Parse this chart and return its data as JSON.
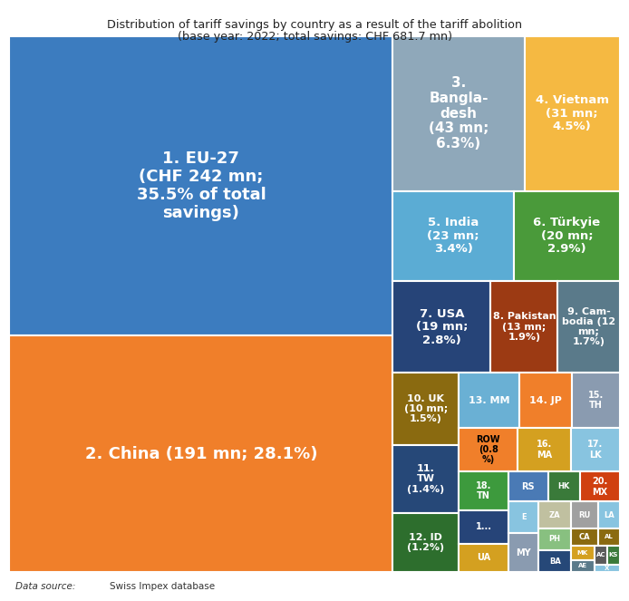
{
  "title_line1": "Distribution of tariff savings by country as a result of the tariff abolition",
  "title_line2": "(base year: 2022; total savings: CHF 681.7 mn)",
  "countries": [
    {
      "label": "1. EU-27\n(CHF 242 mn;\n35.5% of total\nsavings)",
      "value": 242,
      "color": "#3c7cbf",
      "text_dark": false
    },
    {
      "label": "2. China (191 mn; 28.1%)",
      "value": 191,
      "color": "#f07f2a",
      "text_dark": false
    },
    {
      "label": "3.\nBangla-\ndesh\n(43 mn;\n6.3%)",
      "value": 43,
      "color": "#8fa8ba",
      "text_dark": false
    },
    {
      "label": "4. Vietnam\n(31 mn;\n4.5%)",
      "value": 31,
      "color": "#f5b942",
      "text_dark": false
    },
    {
      "label": "5. India\n(23 mn;\n3.4%)",
      "value": 23,
      "color": "#5bacd4",
      "text_dark": false
    },
    {
      "label": "6. Türkyie\n(20 mn;\n2.9%)",
      "value": 20,
      "color": "#4a9a3a",
      "text_dark": false
    },
    {
      "label": "7. USA\n(19 mn;\n2.8%)",
      "value": 19,
      "color": "#264478",
      "text_dark": false
    },
    {
      "label": "8. Pakistan\n(13 mn;\n1.9%)",
      "value": 13,
      "color": "#9c3a13",
      "text_dark": false
    },
    {
      "label": "9. Cam-\nbodia (12\nmn;\n1.7%)",
      "value": 12,
      "color": "#5a7a8a",
      "text_dark": false
    },
    {
      "label": "10. UK\n(10 mn;\n1.5%)",
      "value": 10,
      "color": "#8a6a10",
      "text_dark": false
    },
    {
      "label": "11.\nTW\n(1.4%)",
      "value": 9.5,
      "color": "#264878",
      "text_dark": false
    },
    {
      "label": "12. ID\n(1.2%)",
      "value": 8.2,
      "color": "#2d6e2d",
      "text_dark": false
    },
    {
      "label": "13. MM",
      "value": 7.0,
      "color": "#6ab0d4",
      "text_dark": false
    },
    {
      "label": "14. JP",
      "value": 6.0,
      "color": "#f07f2a",
      "text_dark": false
    },
    {
      "label": "15.\nTH",
      "value": 5.5,
      "color": "#8a9bb0",
      "text_dark": false
    },
    {
      "label": "ROW\n(0.8\n%)",
      "value": 5.5,
      "color": "#f07f2a",
      "text_dark": true
    },
    {
      "label": "16.\nMA",
      "value": 5.0,
      "color": "#d4a020",
      "text_dark": false
    },
    {
      "label": "17.\nLK",
      "value": 4.5,
      "color": "#88c4e0",
      "text_dark": false
    },
    {
      "label": "18.\nTN",
      "value": 4.0,
      "color": "#3d9a3d",
      "text_dark": false
    },
    {
      "label": "1...",
      "value": 3.5,
      "color": "#264478",
      "text_dark": false
    },
    {
      "label": "UA",
      "value": 3.0,
      "color": "#d4a020",
      "text_dark": false
    },
    {
      "label": "RS",
      "value": 2.5,
      "color": "#4a7ab5",
      "text_dark": false
    },
    {
      "label": "HK",
      "value": 2.0,
      "color": "#3a7a3a",
      "text_dark": false
    },
    {
      "label": "20.\nMX",
      "value": 2.5,
      "color": "#d04010",
      "text_dark": false
    },
    {
      "label": "E",
      "value": 2.0,
      "color": "#88c4e0",
      "text_dark": false
    },
    {
      "label": "MY",
      "value": 2.5,
      "color": "#8a9bb0",
      "text_dark": false
    },
    {
      "label": "ZA",
      "value": 1.8,
      "color": "#c0c0a0",
      "text_dark": false
    },
    {
      "label": "PH",
      "value": 1.5,
      "color": "#88c080",
      "text_dark": false
    },
    {
      "label": "BA",
      "value": 1.5,
      "color": "#264878",
      "text_dark": false
    },
    {
      "label": "RU",
      "value": 1.5,
      "color": "#a0a0a0",
      "text_dark": false
    },
    {
      "label": "LA",
      "value": 1.2,
      "color": "#88c4e0",
      "text_dark": false
    },
    {
      "label": "CA",
      "value": 1.0,
      "color": "#8a6a10",
      "text_dark": false
    },
    {
      "label": "AL",
      "value": 0.8,
      "color": "#8a6a10",
      "text_dark": false
    },
    {
      "label": "MK",
      "value": 0.7,
      "color": "#d4a020",
      "text_dark": false
    },
    {
      "label": "AE",
      "value": 0.6,
      "color": "#5a7a8a",
      "text_dark": false
    },
    {
      "label": "AC",
      "value": 0.5,
      "color": "#5a5a5a",
      "text_dark": false
    },
    {
      "label": "KS",
      "value": 0.5,
      "color": "#3a7a3a",
      "text_dark": false
    },
    {
      "label": "X",
      "value": 0.4,
      "color": "#88c4e0",
      "text_dark": false
    }
  ],
  "background_color": "#ffffff"
}
